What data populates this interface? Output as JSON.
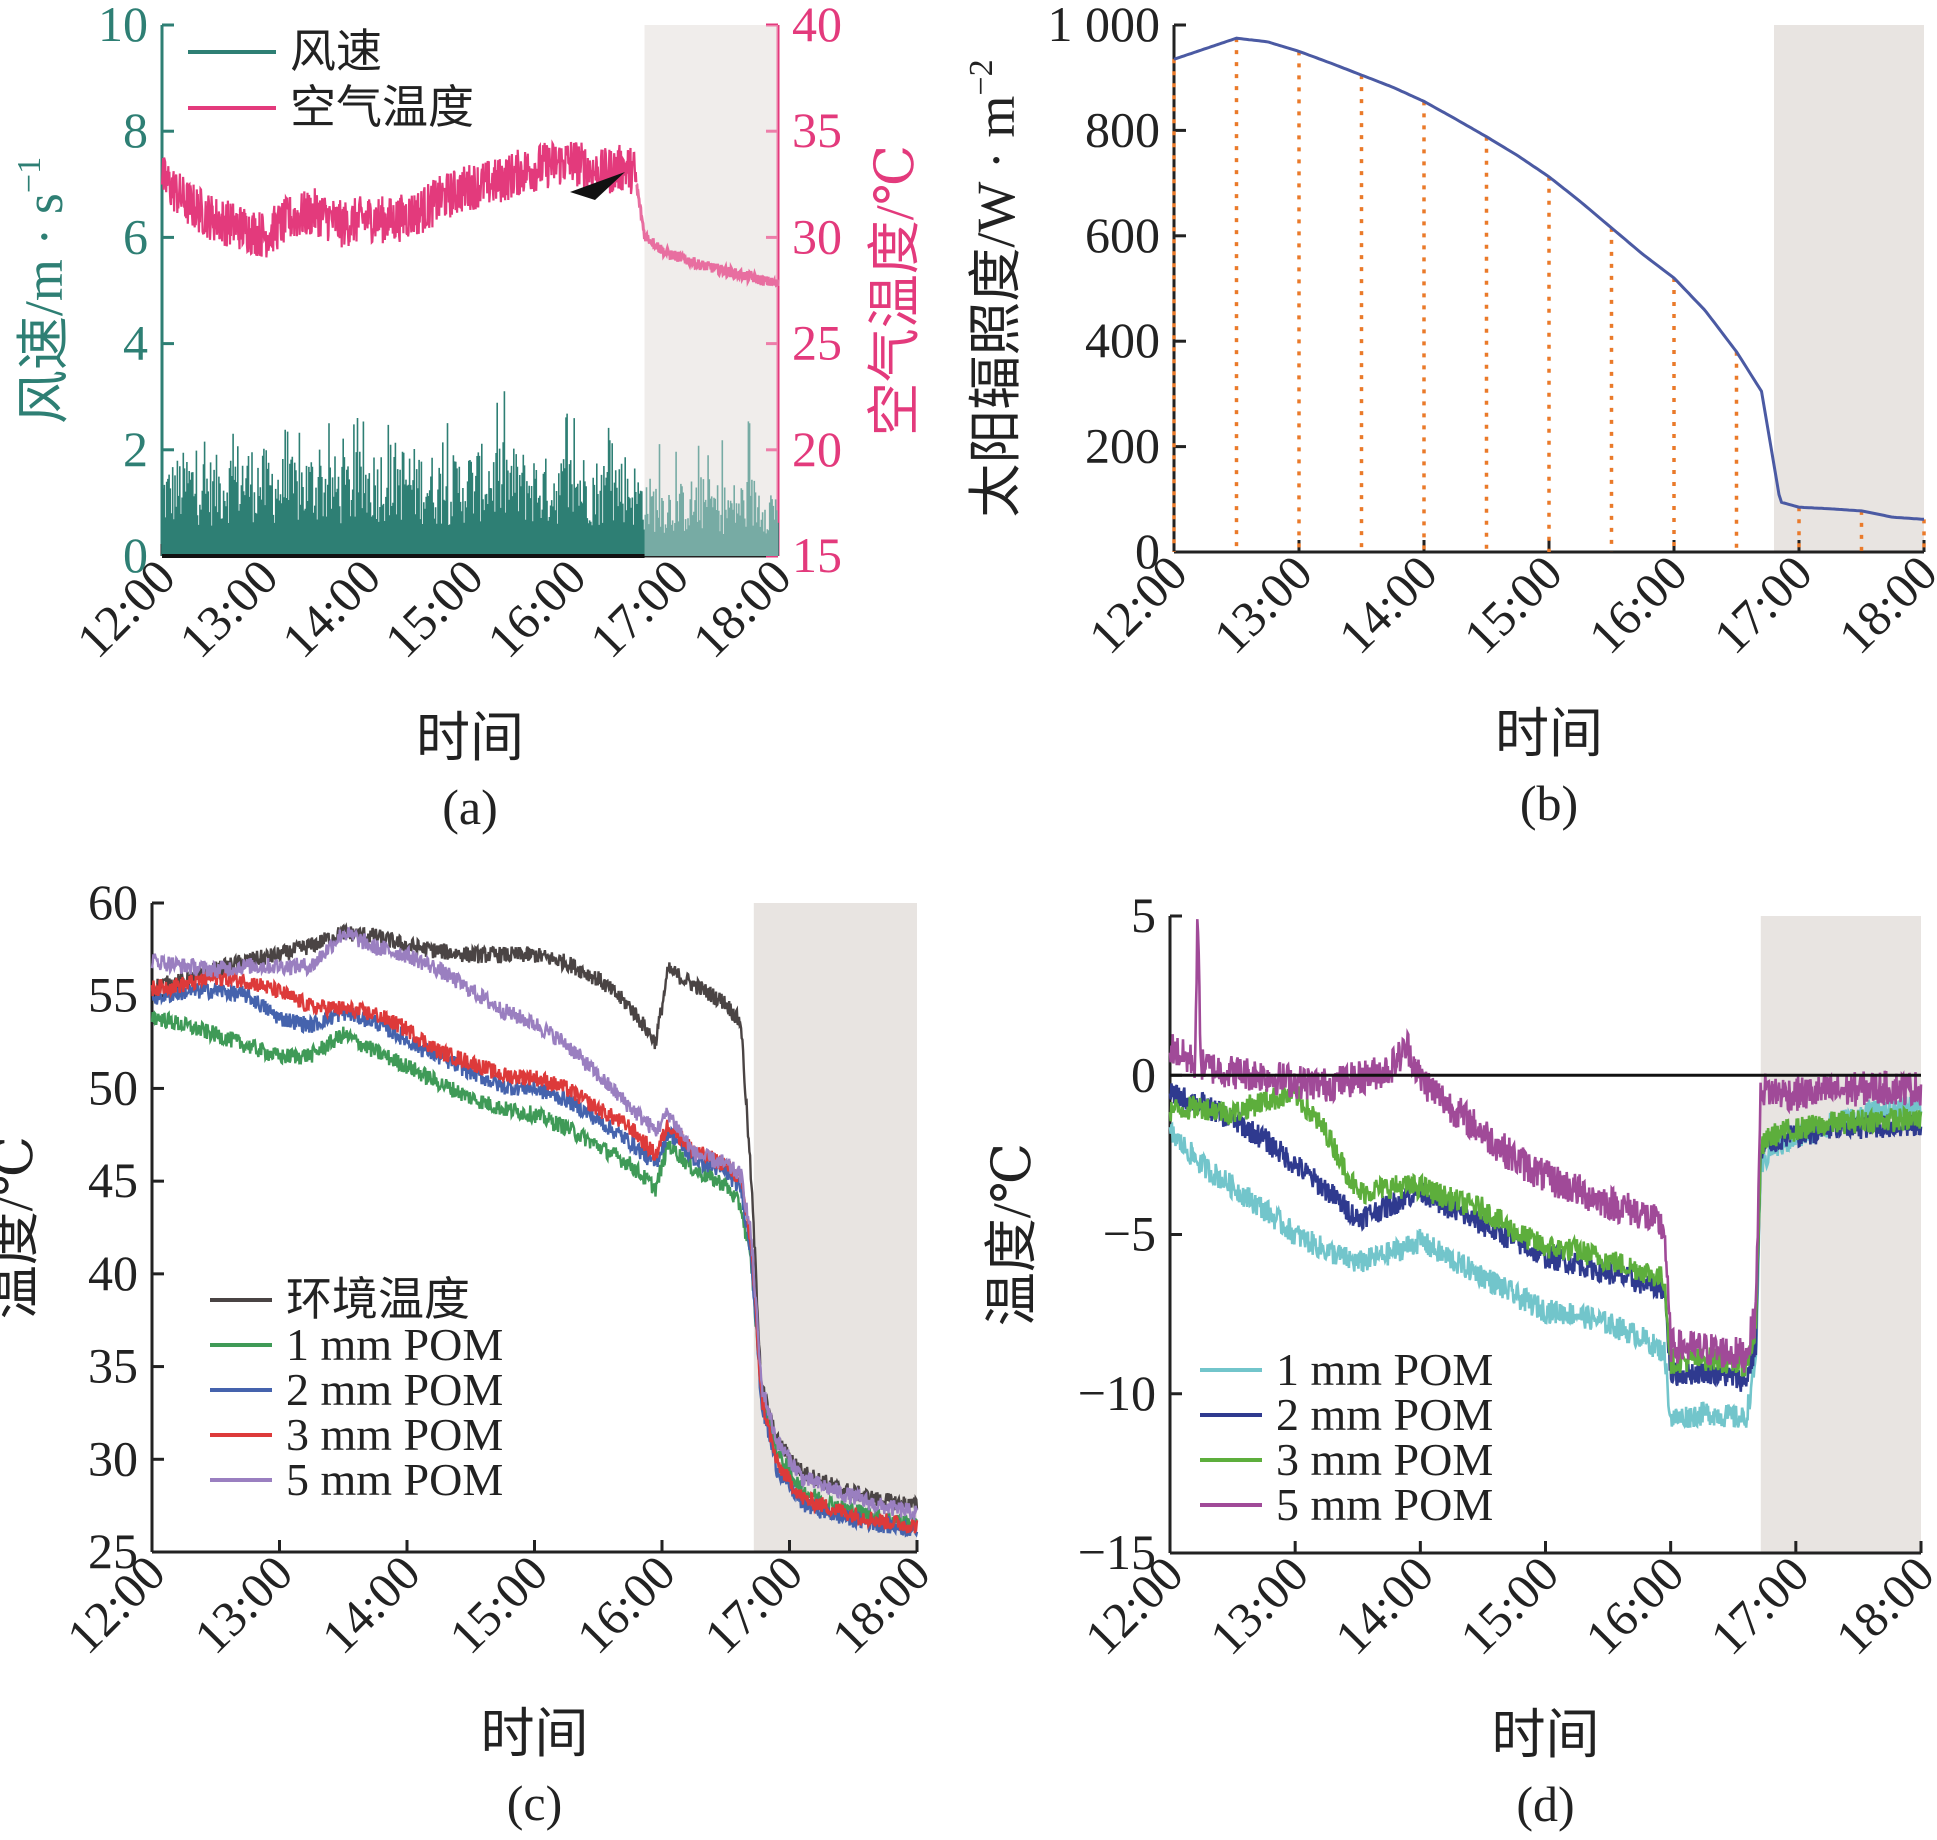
{
  "chart_data": [
    {
      "type": "line",
      "panel_label": "(a)",
      "xlabel": "时间",
      "x_ticks": [
        "12:00",
        "13:00",
        "14:00",
        "15:00",
        "16:00",
        "17:00",
        "18:00"
      ],
      "xlim": [
        12,
        18
      ],
      "ylabel": "风速/m · s",
      "ylabel_sup": "−1",
      "ylim": [
        0,
        10
      ],
      "y_ticks": [
        "0",
        "2",
        "4",
        "6",
        "8",
        "10"
      ],
      "y2label": "空气温度/℃",
      "y2lim": [
        15,
        40
      ],
      "y2_ticks": [
        "15",
        "20",
        "25",
        "30",
        "35",
        "40"
      ],
      "shaded_region": [
        16.7,
        18
      ],
      "legend": "top-left",
      "colors": {
        "wind": "#2e7f74",
        "air": "#e33a7c",
        "shade": "#e8e4e1",
        "axis_left": "#2e7f74",
        "axis_right": "#e33a7c"
      },
      "series": [
        {
          "name": "风速",
          "axis": "left",
          "color": "#2e7f74",
          "style": "bars",
          "x": [
            12.0,
            12.25,
            12.5,
            12.75,
            13.0,
            13.25,
            13.5,
            13.75,
            14.0,
            14.25,
            14.5,
            14.75,
            15.0,
            15.25,
            15.5,
            15.75,
            16.0,
            16.25,
            16.5,
            16.7,
            17.0,
            17.25,
            17.5,
            17.75,
            18.0
          ],
          "values": [
            1.0,
            1.2,
            1.1,
            1.3,
            1.2,
            1.1,
            1.2,
            1.1,
            1.2,
            1.3,
            1.2,
            1.1,
            1.2,
            1.3,
            1.2,
            1.1,
            1.2,
            1.1,
            1.2,
            0.9,
            0.8,
            0.9,
            0.8,
            0.9,
            0.8
          ],
          "peak": [
            2.2,
            2.3,
            2.4,
            2.8,
            3.1,
            2.6,
            2.3,
            2.7,
            2.6,
            2.5,
            3.1,
            2.4,
            3.9,
            3.4,
            2.6,
            2.4,
            3.1,
            2.7,
            2.6,
            2.4,
            2.0,
            2.2,
            2.4,
            2.6,
            2.3
          ]
        },
        {
          "name": "空气温度",
          "axis": "right",
          "color": "#e33a7c",
          "x": [
            12.0,
            12.25,
            12.5,
            12.75,
            13.0,
            13.25,
            13.5,
            13.75,
            14.0,
            14.25,
            14.5,
            14.75,
            15.0,
            15.25,
            15.5,
            15.75,
            16.0,
            16.25,
            16.5,
            16.6,
            16.7,
            16.9,
            17.25,
            17.5,
            17.75,
            18.0
          ],
          "values": [
            32.8,
            31.6,
            30.9,
            30.5,
            30.1,
            30.9,
            31.2,
            30.6,
            30.9,
            30.8,
            31.2,
            31.9,
            32.4,
            32.6,
            33.1,
            33.4,
            33.6,
            33.0,
            33.3,
            33.1,
            30.1,
            29.3,
            28.7,
            28.4,
            28.1,
            27.8
          ]
        }
      ],
      "annotation": "arrow"
    },
    {
      "type": "line",
      "panel_label": "(b)",
      "xlabel": "时间",
      "x_ticks": [
        "12:00",
        "13:00",
        "14:00",
        "15:00",
        "16:00",
        "17:00",
        "18:00"
      ],
      "xlim": [
        12,
        18
      ],
      "ylabel": "太阳辐照度/W · m",
      "ylabel_sup": "−2",
      "ylim": [
        0,
        1000
      ],
      "y_ticks": [
        "0",
        "200",
        "400",
        "600",
        "800",
        "1 000"
      ],
      "shaded_region": [
        16.8,
        18
      ],
      "colors": {
        "line": "#4b5aa3",
        "drop": "#ea7a2a",
        "shade": "#e8e4e1"
      },
      "series": [
        {
          "name": "",
          "color": "#4b5aa3",
          "x": [
            12.0,
            12.25,
            12.5,
            12.75,
            13.0,
            13.25,
            13.5,
            13.75,
            14.0,
            14.25,
            14.5,
            14.75,
            15.0,
            15.25,
            15.5,
            15.75,
            16.0,
            16.25,
            16.5,
            16.7,
            16.85,
            17.0,
            17.25,
            17.5,
            17.75,
            18.0
          ],
          "values": [
            935,
            955,
            975,
            968,
            950,
            928,
            905,
            882,
            855,
            822,
            788,
            752,
            712,
            665,
            615,
            565,
            520,
            458,
            380,
            305,
            95,
            85,
            82,
            78,
            66,
            62
          ]
        }
      ],
      "dotted_drop_x": [
        12.0,
        12.5,
        13.0,
        13.5,
        14.0,
        14.5,
        15.0,
        15.5,
        16.0,
        16.5,
        17.0,
        17.5,
        18.0
      ]
    },
    {
      "type": "line",
      "panel_label": "(c)",
      "xlabel": "时间",
      "x_ticks": [
        "12:00",
        "13:00",
        "14:00",
        "15:00",
        "16:00",
        "17:00",
        "18:00"
      ],
      "xlim": [
        12,
        18
      ],
      "ylabel": "温度/℃",
      "ylim": [
        25,
        60
      ],
      "y_ticks": [
        "25",
        "30",
        "35",
        "40",
        "45",
        "50",
        "55",
        "60"
      ],
      "shaded_region": [
        16.72,
        18
      ],
      "legend": "bottom-left",
      "series": [
        {
          "name": "环境温度",
          "color": "#4a4444",
          "x": [
            12.0,
            12.25,
            12.5,
            12.75,
            13.0,
            13.25,
            13.5,
            13.75,
            14.0,
            14.25,
            14.5,
            14.75,
            15.0,
            15.25,
            15.5,
            15.75,
            15.95,
            16.05,
            16.25,
            16.5,
            16.62,
            16.7,
            16.78,
            16.9,
            17.1,
            17.4,
            17.7,
            18.0
          ],
          "values": [
            55.5,
            55.8,
            56.4,
            56.9,
            57.2,
            57.7,
            58.4,
            58.2,
            57.7,
            57.4,
            57.2,
            57.2,
            57.2,
            56.8,
            55.9,
            54.4,
            52.5,
            56.4,
            55.6,
            54.6,
            53.5,
            45.0,
            34.0,
            31.0,
            29.3,
            28.4,
            27.8,
            27.5
          ]
        },
        {
          "name": "1 mm POM",
          "color": "#3f9a57",
          "x": [
            12.0,
            12.25,
            12.5,
            12.75,
            13.0,
            13.25,
            13.5,
            13.75,
            14.0,
            14.25,
            14.5,
            14.75,
            15.0,
            15.25,
            15.5,
            15.75,
            15.95,
            16.05,
            16.25,
            16.5,
            16.62,
            16.7,
            16.78,
            16.9,
            17.1,
            17.4,
            17.7,
            18.0
          ],
          "values": [
            53.9,
            53.4,
            52.9,
            52.3,
            51.7,
            51.8,
            52.9,
            52.0,
            51.2,
            50.3,
            49.5,
            48.9,
            48.6,
            47.9,
            46.9,
            45.9,
            44.6,
            47.0,
            45.6,
            44.8,
            43.6,
            40.5,
            33.5,
            30.4,
            28.3,
            27.4,
            26.9,
            26.5
          ]
        },
        {
          "name": "2 mm POM",
          "color": "#4563ad",
          "x": [
            12.0,
            12.25,
            12.5,
            12.75,
            13.0,
            13.25,
            13.5,
            13.75,
            14.0,
            14.25,
            14.5,
            14.75,
            15.0,
            15.25,
            15.5,
            15.75,
            15.95,
            16.05,
            16.25,
            16.5,
            16.62,
            16.7,
            16.78,
            16.9,
            17.1,
            17.4,
            17.7,
            18.0
          ],
          "values": [
            54.9,
            55.2,
            55.3,
            55.0,
            53.8,
            53.4,
            54.1,
            53.6,
            52.6,
            51.7,
            50.9,
            50.1,
            50.0,
            49.4,
            48.3,
            47.1,
            45.9,
            47.7,
            46.2,
            45.5,
            44.6,
            41.0,
            33.0,
            29.5,
            27.6,
            26.9,
            26.5,
            26.2
          ]
        },
        {
          "name": "3 mm POM",
          "color": "#dd3a3a",
          "x": [
            12.0,
            12.25,
            12.5,
            12.75,
            13.0,
            13.25,
            13.5,
            13.75,
            14.0,
            14.25,
            14.5,
            14.75,
            15.0,
            15.25,
            15.5,
            15.75,
            15.95,
            16.05,
            16.25,
            16.5,
            16.62,
            16.7,
            16.78,
            16.9,
            17.1,
            17.4,
            17.7,
            18.0
          ],
          "values": [
            55.4,
            55.6,
            56.0,
            55.8,
            55.2,
            54.4,
            54.3,
            54.0,
            53.2,
            52.0,
            51.4,
            50.7,
            50.6,
            50.0,
            48.9,
            47.9,
            46.4,
            48.1,
            46.6,
            45.9,
            45.1,
            41.5,
            33.3,
            29.8,
            27.9,
            27.2,
            26.7,
            26.4
          ]
        },
        {
          "name": "5 mm POM",
          "color": "#9a7fc0",
          "x": [
            12.0,
            12.25,
            12.5,
            12.75,
            13.0,
            13.25,
            13.5,
            13.75,
            14.0,
            14.25,
            14.5,
            14.75,
            15.0,
            15.25,
            15.5,
            15.75,
            15.95,
            16.05,
            16.25,
            16.5,
            16.62,
            16.7,
            16.78,
            16.9,
            17.1,
            17.4,
            17.7,
            18.0
          ],
          "values": [
            56.9,
            56.6,
            56.4,
            56.6,
            56.6,
            56.6,
            58.4,
            57.6,
            57.2,
            56.4,
            55.3,
            54.2,
            53.5,
            52.4,
            50.7,
            49.0,
            47.7,
            48.7,
            46.5,
            45.9,
            45.3,
            42.0,
            34.0,
            31.0,
            29.0,
            28.2,
            27.5,
            27.1
          ]
        }
      ]
    },
    {
      "type": "line",
      "panel_label": "(d)",
      "xlabel": "时间",
      "x_ticks": [
        "12:00",
        "13:00",
        "14:00",
        "15:00",
        "16:00",
        "17:00",
        "18:00"
      ],
      "xlim": [
        12,
        18
      ],
      "ylabel": "温度/℃",
      "ylim": [
        -15,
        5
      ],
      "y_ticks": [
        "−15",
        "−10",
        "−5",
        "0",
        "5"
      ],
      "zero_line": true,
      "shaded_region": [
        16.72,
        18
      ],
      "legend": "bottom-left",
      "series": [
        {
          "name": "1 mm POM",
          "color": "#72c5cb",
          "x": [
            12.0,
            12.25,
            12.5,
            12.75,
            13.0,
            13.25,
            13.5,
            13.75,
            14.0,
            14.25,
            14.5,
            14.75,
            15.0,
            15.25,
            15.5,
            15.75,
            15.95,
            16.0,
            16.3,
            16.6,
            16.68,
            16.72,
            16.8,
            17.0,
            17.3,
            17.6,
            18.0
          ],
          "values": [
            -1.8,
            -2.8,
            -3.5,
            -4.2,
            -5.0,
            -5.5,
            -5.9,
            -5.6,
            -5.2,
            -5.8,
            -6.3,
            -6.9,
            -7.4,
            -7.5,
            -7.8,
            -8.2,
            -8.7,
            -10.8,
            -10.6,
            -10.8,
            -9.0,
            -3.0,
            -2.3,
            -2.0,
            -1.5,
            -1.2,
            -0.9
          ]
        },
        {
          "name": "2 mm POM",
          "color": "#2f3a8f",
          "x": [
            12.0,
            12.25,
            12.5,
            12.75,
            13.0,
            13.25,
            13.5,
            13.75,
            14.0,
            14.25,
            14.5,
            14.75,
            15.0,
            15.25,
            15.5,
            15.75,
            15.95,
            16.0,
            16.3,
            16.6,
            16.68,
            16.72,
            16.8,
            17.0,
            17.3,
            17.6,
            18.0
          ],
          "values": [
            -0.6,
            -0.9,
            -1.4,
            -2.0,
            -2.8,
            -3.6,
            -4.5,
            -4.1,
            -3.6,
            -4.2,
            -4.7,
            -5.2,
            -5.7,
            -5.9,
            -6.2,
            -6.5,
            -6.7,
            -9.4,
            -9.3,
            -9.6,
            -8.5,
            -2.5,
            -2.1,
            -1.9,
            -1.7,
            -1.6,
            -1.6
          ]
        },
        {
          "name": "3 mm POM",
          "color": "#5dae3c",
          "x": [
            12.0,
            12.25,
            12.5,
            12.75,
            13.0,
            13.25,
            13.5,
            13.75,
            14.0,
            14.25,
            14.5,
            14.75,
            15.0,
            15.25,
            15.5,
            15.75,
            15.95,
            16.0,
            16.3,
            16.6,
            16.68,
            16.72,
            16.8,
            17.0,
            17.3,
            17.6,
            18.0
          ],
          "values": [
            -1.1,
            -1.0,
            -1.2,
            -0.8,
            -0.6,
            -1.8,
            -3.7,
            -3.5,
            -3.5,
            -3.9,
            -4.2,
            -4.9,
            -5.4,
            -5.5,
            -5.8,
            -6.1,
            -6.4,
            -9.0,
            -8.9,
            -9.1,
            -8.0,
            -2.3,
            -1.9,
            -1.7,
            -1.5,
            -1.4,
            -1.4
          ]
        },
        {
          "name": "5 mm POM",
          "color": "#a04a98",
          "x": [
            12.0,
            12.1,
            12.2,
            12.22,
            12.25,
            12.5,
            12.75,
            13.0,
            13.25,
            13.5,
            13.75,
            13.9,
            14.0,
            14.25,
            14.5,
            14.75,
            15.0,
            15.25,
            15.5,
            15.75,
            15.95,
            16.0,
            16.3,
            16.6,
            16.68,
            16.72,
            16.8,
            17.0,
            17.3,
            17.6,
            18.0
          ],
          "values": [
            0.9,
            0.6,
            0.4,
            4.8,
            0.3,
            0.1,
            0.0,
            -0.2,
            -0.3,
            -0.1,
            0.2,
            0.9,
            -0.1,
            -1.0,
            -1.8,
            -2.6,
            -3.2,
            -3.6,
            -4.0,
            -4.3,
            -4.8,
            -8.5,
            -8.6,
            -8.8,
            -7.5,
            -0.4,
            -0.5,
            -0.6,
            -0.5,
            -0.4,
            -0.4
          ]
        }
      ]
    }
  ]
}
